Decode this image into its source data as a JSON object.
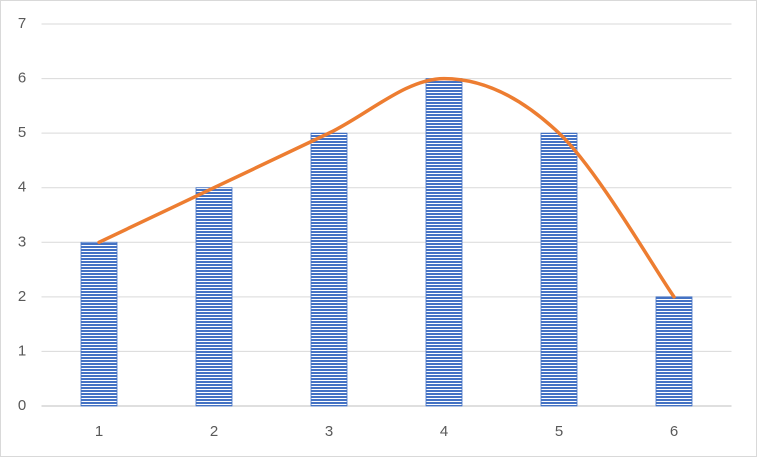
{
  "chart_data": {
    "type": "combo",
    "categories": [
      "1",
      "2",
      "3",
      "4",
      "5",
      "6"
    ],
    "series": [
      {
        "type": "bar",
        "color": "#4472c4",
        "values": [
          3,
          4,
          5,
          6,
          5,
          2
        ]
      },
      {
        "type": "line",
        "color": "#ed7d31",
        "smooth": true,
        "values": [
          3,
          4,
          5,
          6,
          5,
          2
        ]
      }
    ],
    "ylim": [
      0,
      7
    ],
    "yticks": [
      0,
      1,
      2,
      3,
      4,
      5,
      6,
      7
    ],
    "grid": true
  }
}
